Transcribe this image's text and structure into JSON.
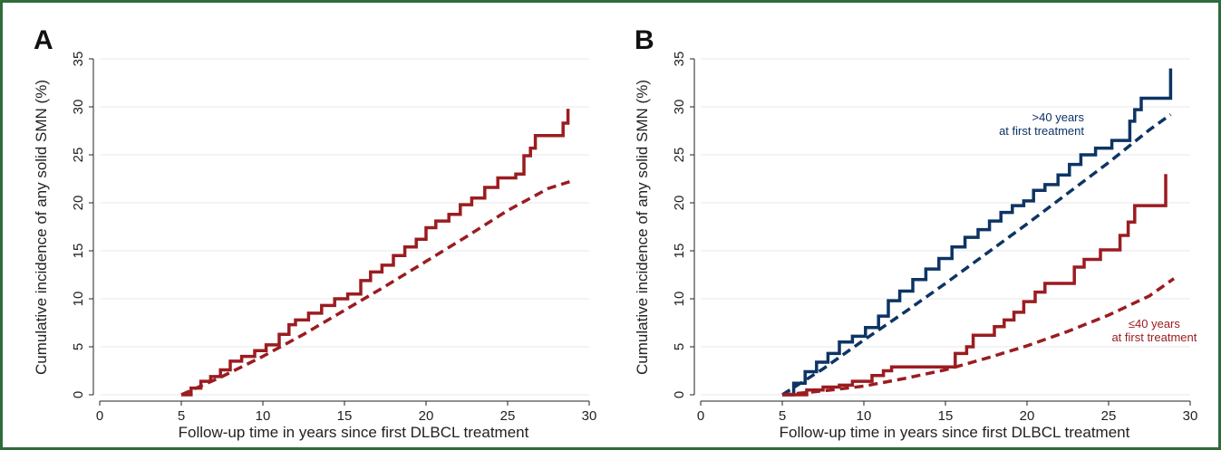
{
  "colors": {
    "red": "#9b1c20",
    "blue": "#0d3464",
    "border": "#2f6b3c",
    "grid": "#eaeaea"
  },
  "chart_data": [
    {
      "panel_label": "A",
      "type": "line",
      "xlabel": "Follow-up time in years since first DLBCL treatment",
      "ylabel": "Cumulative incidence of any solid SMN (%)",
      "xlim": [
        0,
        30
      ],
      "ylim": [
        0,
        35
      ],
      "xticks": [
        0,
        5,
        10,
        15,
        20,
        25,
        30
      ],
      "yticks": [
        0,
        5,
        10,
        15,
        20,
        25,
        30,
        35
      ],
      "grid": true,
      "series": [
        {
          "style": "step-solid",
          "color": "#9b1c20",
          "x": [
            5,
            5.6,
            6.2,
            6.8,
            7.4,
            8,
            8.7,
            9.5,
            10.2,
            11,
            11.6,
            12,
            12.8,
            13.6,
            14.4,
            15.2,
            16,
            16.6,
            17.3,
            18,
            18.7,
            19.4,
            20,
            20.6,
            21.4,
            22.1,
            22.8,
            23.6,
            24.4,
            25.5,
            26,
            26.4,
            26.7,
            27.1,
            28,
            28.4,
            28.7
          ],
          "y": [
            0,
            0.7,
            1.4,
            1.9,
            2.6,
            3.5,
            4.0,
            4.6,
            5.2,
            6.3,
            7.3,
            7.8,
            8.5,
            9.3,
            10.0,
            10.5,
            11.9,
            12.8,
            13.5,
            14.5,
            15.4,
            16.2,
            17.4,
            18.1,
            18.8,
            19.8,
            20.5,
            21.6,
            22.6,
            23.0,
            24.9,
            25.7,
            27.0,
            27.0,
            27.0,
            28.3,
            29.8
          ]
        },
        {
          "style": "dashed",
          "color": "#9b1c20",
          "x": [
            5,
            7.5,
            10,
            12.5,
            15,
            17.5,
            20,
            22.5,
            25,
            27.5,
            28.8
          ],
          "y": [
            0,
            1.9,
            4.0,
            6.3,
            8.8,
            11.3,
            13.9,
            16.5,
            19.2,
            21.5,
            22.2
          ]
        }
      ]
    },
    {
      "panel_label": "B",
      "type": "line",
      "xlabel": "Follow-up time in years since first DLBCL treatment",
      "ylabel": "Cumulative incidence of any solid SMN (%)",
      "xlim": [
        0,
        30
      ],
      "ylim": [
        0,
        35
      ],
      "xticks": [
        0,
        5,
        10,
        15,
        20,
        25,
        30
      ],
      "yticks": [
        0,
        5,
        10,
        15,
        20,
        25,
        30,
        35
      ],
      "grid": true,
      "annotations": [
        {
          "lines": [
            ">40 years",
            "at first treatment"
          ],
          "x": 23.5,
          "y": 28.5,
          "color": "#0d3464",
          "anchor": "end"
        },
        {
          "lines": [
            "≤40 years",
            "at first treatment"
          ],
          "x": 27.8,
          "y": 7.0,
          "color": "#9b1c20",
          "anchor": "middle"
        }
      ],
      "series": [
        {
          "style": "step-solid",
          "color": "#0d3464",
          "x": [
            5,
            5.7,
            6.4,
            7.1,
            7.8,
            8.5,
            9.3,
            10.1,
            10.9,
            11.5,
            12.2,
            13,
            13.8,
            14.6,
            15.4,
            16.2,
            17,
            17.7,
            18.4,
            19.1,
            19.8,
            20.4,
            21.1,
            21.9,
            22.6,
            23.3,
            24.2,
            25.2,
            25.9,
            26.3,
            26.6,
            27,
            27.4,
            28.8
          ],
          "y": [
            0,
            1.2,
            2.4,
            3.4,
            4.3,
            5.5,
            6.1,
            7.0,
            8.2,
            9.8,
            10.8,
            12.0,
            13.1,
            14.2,
            15.4,
            16.4,
            17.2,
            18.1,
            19.0,
            19.7,
            20.2,
            21.3,
            21.9,
            22.9,
            24.0,
            25.0,
            25.7,
            26.5,
            26.5,
            28.5,
            29.7,
            30.9,
            30.9,
            34.0
          ]
        },
        {
          "style": "dashed",
          "color": "#0d3464",
          "x": [
            5,
            7.5,
            10,
            12.5,
            15,
            17.5,
            20,
            22.5,
            25,
            27.5,
            28.8
          ],
          "y": [
            0,
            2.7,
            5.7,
            8.6,
            11.6,
            14.7,
            17.8,
            21.0,
            24.2,
            27.6,
            29.2
          ]
        },
        {
          "style": "step-solid",
          "color": "#9b1c20",
          "x": [
            5,
            6.5,
            7.5,
            8.5,
            9.3,
            10.5,
            11.2,
            11.7,
            15.6,
            16.3,
            16.7,
            17.4,
            18,
            18.6,
            19.2,
            19.8,
            20.5,
            21.1,
            21.6,
            22.9,
            23.2,
            23.5,
            24,
            24.5,
            25.2,
            25.7,
            26.2,
            26.6,
            28,
            28.5
          ],
          "y": [
            0,
            0.5,
            0.8,
            1.0,
            1.4,
            2.0,
            2.5,
            2.9,
            4.3,
            5.0,
            6.2,
            6.2,
            7.1,
            7.8,
            8.6,
            9.7,
            10.7,
            11.6,
            11.6,
            13.3,
            13.3,
            14.1,
            14.1,
            15.1,
            15.1,
            16.6,
            18.0,
            19.7,
            19.7,
            23.0
          ]
        },
        {
          "style": "dashed",
          "color": "#9b1c20",
          "x": [
            5,
            7.5,
            10,
            12.5,
            15,
            17.5,
            20,
            22.5,
            25,
            27.5,
            29
          ],
          "y": [
            0,
            0.4,
            0.9,
            1.7,
            2.6,
            3.8,
            5.1,
            6.6,
            8.3,
            10.3,
            12.1
          ]
        }
      ]
    }
  ]
}
